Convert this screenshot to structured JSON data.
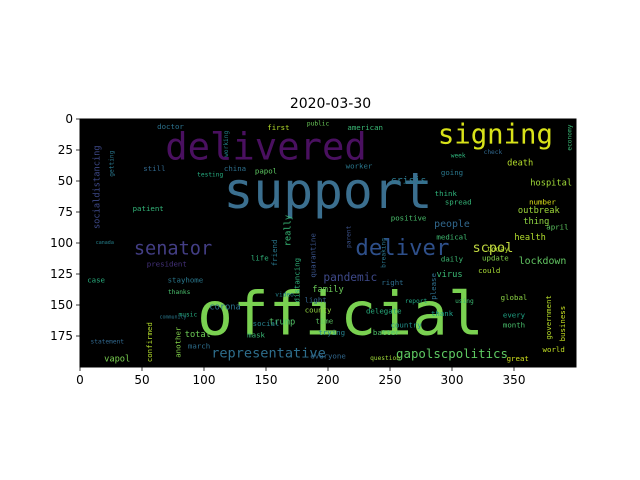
{
  "chart_data": {
    "type": "wordcloud",
    "title": "2020-03-30",
    "xlim": [
      0,
      400
    ],
    "ylim": [
      200,
      0
    ],
    "xticks": [
      0,
      50,
      100,
      150,
      200,
      250,
      300,
      350
    ],
    "yticks": [
      0,
      25,
      50,
      75,
      100,
      125,
      150,
      175
    ],
    "background_color": "#000000",
    "words": [
      {
        "text": "support",
        "x": 200,
        "y": 58,
        "size": 40,
        "color": "#3b6f8f",
        "rotate": 0
      },
      {
        "text": "official",
        "x": 210,
        "y": 158,
        "size": 48,
        "color": "#7ad151",
        "rotate": 0
      },
      {
        "text": "delivered",
        "x": 150,
        "y": 22,
        "size": 30,
        "color": "#4a1060",
        "rotate": 0
      },
      {
        "text": "signing",
        "x": 335,
        "y": 13,
        "size": 22,
        "color": "#d8e219",
        "rotate": 0
      },
      {
        "text": "deliver",
        "x": 260,
        "y": 104,
        "size": 18,
        "color": "#2e4f8a",
        "rotate": 0
      },
      {
        "text": "senator",
        "x": 75,
        "y": 105,
        "size": 15,
        "color": "#433e85",
        "rotate": 0
      },
      {
        "text": "representative",
        "x": 152,
        "y": 189,
        "size": 11,
        "color": "#2e6f8e",
        "rotate": 0
      },
      {
        "text": "scpol",
        "x": 333,
        "y": 104,
        "size": 11,
        "color": "#c0d740",
        "rotate": 0
      },
      {
        "text": "gapolscpolitics",
        "x": 300,
        "y": 189,
        "size": 10,
        "color": "#5ec962",
        "rotate": 0
      },
      {
        "text": "pandemic",
        "x": 218,
        "y": 128,
        "size": 9,
        "color": "#3e4989",
        "rotate": 0
      },
      {
        "text": "lockdown",
        "x": 373,
        "y": 115,
        "size": 8,
        "color": "#63c763",
        "rotate": 0
      },
      {
        "text": "people",
        "x": 300,
        "y": 85,
        "size": 8,
        "color": "#31688e",
        "rotate": 0
      },
      {
        "text": "crisis",
        "x": 265,
        "y": 50,
        "size": 8,
        "color": "#2a788e",
        "rotate": 0
      },
      {
        "text": "death",
        "x": 355,
        "y": 36,
        "size": 7,
        "color": "#b5de2b",
        "rotate": 0
      },
      {
        "text": "hospital",
        "x": 380,
        "y": 52,
        "size": 7,
        "color": "#a0da39",
        "rotate": 0
      },
      {
        "text": "outbreak",
        "x": 370,
        "y": 74,
        "size": 7,
        "color": "#9fda3a",
        "rotate": 0
      },
      {
        "text": "thing",
        "x": 368,
        "y": 83,
        "size": 7,
        "color": "#90d743",
        "rotate": 0
      },
      {
        "text": "health",
        "x": 363,
        "y": 96,
        "size": 7,
        "color": "#b2dd2d",
        "rotate": 0
      },
      {
        "text": "virus",
        "x": 298,
        "y": 126,
        "size": 7,
        "color": "#3bbb75",
        "rotate": 0
      },
      {
        "text": "family",
        "x": 200,
        "y": 138,
        "size": 7,
        "color": "#6ccd5a",
        "rotate": 0
      },
      {
        "text": "trump",
        "x": 163,
        "y": 164,
        "size": 7,
        "color": "#54c568",
        "rotate": 0
      },
      {
        "text": "corona",
        "x": 117,
        "y": 152,
        "size": 7,
        "color": "#2c728e",
        "rotate": 0
      },
      {
        "text": "total",
        "x": 95,
        "y": 174,
        "size": 7,
        "color": "#6ece58",
        "rotate": 0
      },
      {
        "text": "vapol",
        "x": 30,
        "y": 194,
        "size": 7,
        "color": "#7ad151",
        "rotate": 0
      },
      {
        "text": "stayhome",
        "x": 85,
        "y": 130,
        "size": 6,
        "color": "#2a788e",
        "rotate": 0
      },
      {
        "text": "president",
        "x": 70,
        "y": 117,
        "size": 6,
        "color": "#46337e",
        "rotate": 0
      },
      {
        "text": "update",
        "x": 335,
        "y": 112,
        "size": 6,
        "color": "#84d44b",
        "rotate": 0
      },
      {
        "text": "today",
        "x": 337,
        "y": 105,
        "size": 6,
        "color": "#b5de2b",
        "rotate": 0
      },
      {
        "text": "april",
        "x": 385,
        "y": 87,
        "size": 6,
        "color": "#5ec962",
        "rotate": 0
      },
      {
        "text": "medical",
        "x": 300,
        "y": 95,
        "size": 6,
        "color": "#40bd72",
        "rotate": 0
      },
      {
        "text": "positive",
        "x": 265,
        "y": 80,
        "size": 6,
        "color": "#4ac16d",
        "rotate": 0
      },
      {
        "text": "spread",
        "x": 305,
        "y": 67,
        "size": 6,
        "color": "#35b779",
        "rotate": 0
      },
      {
        "text": "think",
        "x": 295,
        "y": 60,
        "size": 6,
        "color": "#2fb47c",
        "rotate": 0
      },
      {
        "text": "daily",
        "x": 300,
        "y": 113,
        "size": 6,
        "color": "#3dbc74",
        "rotate": 0
      },
      {
        "text": "could",
        "x": 330,
        "y": 122,
        "size": 6,
        "color": "#a8db34",
        "rotate": 0
      },
      {
        "text": "right",
        "x": 252,
        "y": 132,
        "size": 6,
        "color": "#2e6e8e",
        "rotate": 0
      },
      {
        "text": "delegate",
        "x": 245,
        "y": 155,
        "size": 6,
        "color": "#29af7f",
        "rotate": 0
      },
      {
        "text": "county",
        "x": 192,
        "y": 154,
        "size": 6,
        "color": "#93d741",
        "rotate": 0
      },
      {
        "text": "time",
        "x": 197,
        "y": 163,
        "size": 6,
        "color": "#5ec962",
        "rotate": 0
      },
      {
        "text": "trying",
        "x": 203,
        "y": 172,
        "size": 6,
        "color": "#26828e",
        "rotate": 0
      },
      {
        "text": "batter",
        "x": 247,
        "y": 172,
        "size": 6,
        "color": "#50c46a",
        "rotate": 0
      },
      {
        "text": "country",
        "x": 263,
        "y": 166,
        "size": 6,
        "color": "#21918c",
        "rotate": 0
      },
      {
        "text": "social",
        "x": 150,
        "y": 165,
        "size": 6,
        "color": "#27808e",
        "rotate": 0
      },
      {
        "text": "everyone",
        "x": 200,
        "y": 191,
        "size": 6,
        "color": "#31688e",
        "rotate": 0
      },
      {
        "text": "question",
        "x": 246,
        "y": 193,
        "size": 5,
        "color": "#a0da39",
        "rotate": 0
      },
      {
        "text": "great",
        "x": 353,
        "y": 193,
        "size": 6,
        "color": "#d0e11c",
        "rotate": 0
      },
      {
        "text": "world",
        "x": 382,
        "y": 186,
        "size": 6,
        "color": "#c2df23",
        "rotate": 0
      },
      {
        "text": "month",
        "x": 350,
        "y": 166,
        "size": 6,
        "color": "#4ac16d",
        "rotate": 0
      },
      {
        "text": "every",
        "x": 350,
        "y": 158,
        "size": 6,
        "color": "#20a486",
        "rotate": 0
      },
      {
        "text": "global",
        "x": 350,
        "y": 144,
        "size": 6,
        "color": "#8ed645",
        "rotate": 0
      },
      {
        "text": "number",
        "x": 373,
        "y": 67,
        "size": 6,
        "color": "#dfe318",
        "rotate": 0
      },
      {
        "text": "going",
        "x": 300,
        "y": 43,
        "size": 6,
        "color": "#2a788e",
        "rotate": 0
      },
      {
        "text": "worker",
        "x": 225,
        "y": 38,
        "size": 6,
        "color": "#2a788e",
        "rotate": 0
      },
      {
        "text": "american",
        "x": 230,
        "y": 7,
        "size": 6,
        "color": "#3aba76",
        "rotate": 0
      },
      {
        "text": "public",
        "x": 192,
        "y": 4,
        "size": 5,
        "color": "#6ccd5a",
        "rotate": 0
      },
      {
        "text": "first",
        "x": 160,
        "y": 7,
        "size": 6,
        "color": "#b5de2b",
        "rotate": 0
      },
      {
        "text": "doctor",
        "x": 73,
        "y": 6,
        "size": 6,
        "color": "#2c728e",
        "rotate": 0
      },
      {
        "text": "still",
        "x": 60,
        "y": 40,
        "size": 6,
        "color": "#31688e",
        "rotate": 0
      },
      {
        "text": "china",
        "x": 125,
        "y": 40,
        "size": 6,
        "color": "#2d708e",
        "rotate": 0
      },
      {
        "text": "testing",
        "x": 105,
        "y": 45,
        "size": 5,
        "color": "#26ad81",
        "rotate": 0
      },
      {
        "text": "papol",
        "x": 150,
        "y": 42,
        "size": 6,
        "color": "#5ec962",
        "rotate": 0
      },
      {
        "text": "patient",
        "x": 55,
        "y": 72,
        "size": 6,
        "color": "#33b67a",
        "rotate": 0
      },
      {
        "text": "life",
        "x": 145,
        "y": 112,
        "size": 6,
        "color": "#31b57b",
        "rotate": 0
      },
      {
        "text": "light",
        "x": 190,
        "y": 146,
        "size": 6,
        "color": "#33638d",
        "rotate": 0
      },
      {
        "text": "mask",
        "x": 142,
        "y": 174,
        "size": 6,
        "color": "#3aba76",
        "rotate": 0
      },
      {
        "text": "march",
        "x": 96,
        "y": 183,
        "size": 6,
        "color": "#2e6f8e",
        "rotate": 0
      },
      {
        "text": "case",
        "x": 13,
        "y": 130,
        "size": 6,
        "color": "#29af7f",
        "rotate": 0
      },
      {
        "text": "thanks",
        "x": 80,
        "y": 140,
        "size": 5,
        "color": "#4ac16d",
        "rotate": 0
      },
      {
        "text": "music",
        "x": 87,
        "y": 158,
        "size": 5,
        "color": "#27ad81",
        "rotate": 0
      },
      {
        "text": "video",
        "x": 165,
        "y": 142,
        "size": 5,
        "color": "#25848e",
        "rotate": 0
      },
      {
        "text": "report",
        "x": 271,
        "y": 147,
        "size": 5,
        "color": "#22a884",
        "rotate": 0
      },
      {
        "text": "thank",
        "x": 292,
        "y": 157,
        "size": 6,
        "color": "#1f9e89",
        "rotate": 0
      },
      {
        "text": "using",
        "x": 310,
        "y": 147,
        "size": 5,
        "color": "#3dbc74",
        "rotate": 0
      },
      {
        "text": "socialdistancing",
        "x": 14,
        "y": 55,
        "size": 7,
        "color": "#3e4989",
        "rotate": -90
      },
      {
        "text": "really",
        "x": 168,
        "y": 90,
        "size": 7,
        "color": "#38b977",
        "rotate": -90
      },
      {
        "text": "friend",
        "x": 157,
        "y": 108,
        "size": 6,
        "color": "#2a788e",
        "rotate": -90
      },
      {
        "text": "distancing",
        "x": 175,
        "y": 130,
        "size": 6,
        "color": "#2fb47c",
        "rotate": -90
      },
      {
        "text": "quarantine",
        "x": 188,
        "y": 110,
        "size": 6,
        "color": "#3a548c",
        "rotate": -90
      },
      {
        "text": "confirmed",
        "x": 56,
        "y": 180,
        "size": 6,
        "color": "#b5de2b",
        "rotate": -90
      },
      {
        "text": "another",
        "x": 79,
        "y": 180,
        "size": 6,
        "color": "#84d44b",
        "rotate": -90
      },
      {
        "text": "government",
        "x": 378,
        "y": 160,
        "size": 6,
        "color": "#b8de29",
        "rotate": -90
      },
      {
        "text": "business",
        "x": 389,
        "y": 165,
        "size": 6,
        "color": "#c8e020",
        "rotate": -90
      },
      {
        "text": "please",
        "x": 285,
        "y": 135,
        "size": 6,
        "color": "#2e6f8e",
        "rotate": -90
      },
      {
        "text": "breaking",
        "x": 245,
        "y": 108,
        "size": 5,
        "color": "#2a768e",
        "rotate": -90
      },
      {
        "text": "parent",
        "x": 217,
        "y": 95,
        "size": 5,
        "color": "#3b528b",
        "rotate": -90
      },
      {
        "text": "getting",
        "x": 26,
        "y": 36,
        "size": 5,
        "color": "#2a788e",
        "rotate": -90
      },
      {
        "text": "canada",
        "x": 20,
        "y": 100,
        "size": 4,
        "color": "#26828e",
        "rotate": 0
      },
      {
        "text": "week",
        "x": 305,
        "y": 30,
        "size": 5,
        "color": "#2fb47c",
        "rotate": 0
      },
      {
        "text": "check",
        "x": 333,
        "y": 27,
        "size": 5,
        "color": "#31688e",
        "rotate": 0
      },
      {
        "text": "economy",
        "x": 395,
        "y": 15,
        "size": 5,
        "color": "#3aba76",
        "rotate": -90
      },
      {
        "text": "working",
        "x": 118,
        "y": 20,
        "size": 5,
        "color": "#25858e",
        "rotate": -90
      },
      {
        "text": "community",
        "x": 75,
        "y": 160,
        "size": 4,
        "color": "#2a788e",
        "rotate": 0
      },
      {
        "text": "statement",
        "x": 22,
        "y": 180,
        "size": 5,
        "color": "#31688e",
        "rotate": 0
      }
    ]
  }
}
